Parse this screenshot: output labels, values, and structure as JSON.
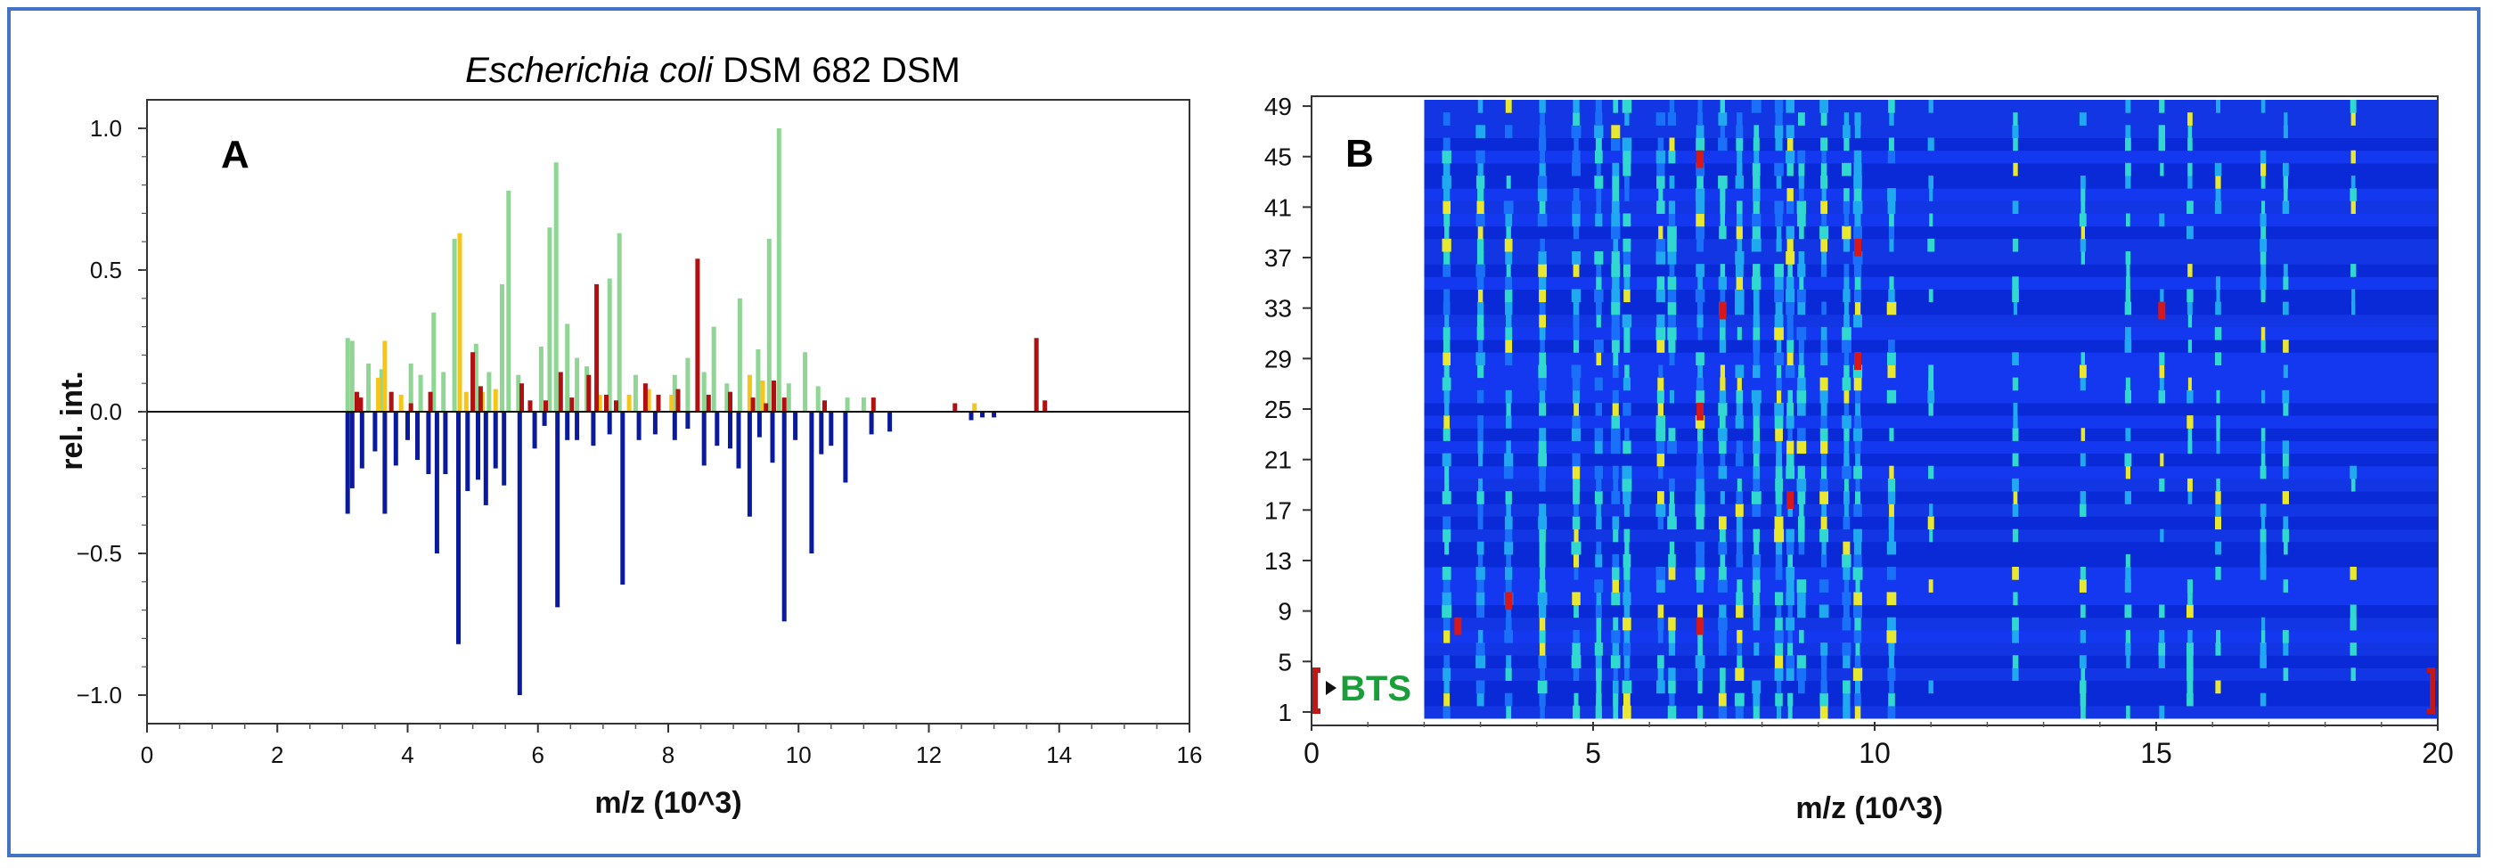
{
  "colors": {
    "frame": "#4472c4",
    "green": "#8fd694",
    "yellow": "#f5c518",
    "red": "#b01010",
    "blue": "#0a1a9c",
    "bts": "#1a9e3a"
  },
  "panelA": {
    "letter": "A",
    "title_italic": "Escherichia coli",
    "title_rest": " DSM 682 DSM"
  },
  "panelB": {
    "letter": "B",
    "bts_label": "BTS"
  },
  "chart_data": [
    {
      "type": "bar",
      "panel": "A",
      "title": "Escherichia coli DSM 682 DSM",
      "xlabel": "m/z (10^3)",
      "ylabel": "rel. int.",
      "xlim": [
        0,
        16
      ],
      "ylim": [
        -1.1,
        1.1
      ],
      "xticks": [
        0,
        2,
        4,
        6,
        8,
        10,
        12,
        14,
        16
      ],
      "yticks": [
        1.0,
        0.5,
        0.0,
        -0.5,
        -1.0
      ],
      "ytick_labels": [
        "1.0",
        "0.5",
        "0.0",
        "−0.5",
        "−1.0"
      ],
      "series": [
        {
          "color": "green",
          "x": [
            3.08,
            3.15,
            3.4,
            3.6,
            4.05,
            4.2,
            4.4,
            4.55,
            4.72,
            5.05,
            5.25,
            5.45,
            5.55,
            5.7,
            6.05,
            6.18,
            6.28,
            6.45,
            6.6,
            6.75,
            6.9,
            7.1,
            7.25,
            7.5,
            8.1,
            8.3,
            8.55,
            8.7,
            8.9,
            9.1,
            9.38,
            9.55,
            9.7,
            9.85,
            10.1,
            10.3,
            10.75,
            11.0
          ],
          "values": [
            0.26,
            0.25,
            0.17,
            0.15,
            0.17,
            0.13,
            0.35,
            0.14,
            0.61,
            0.24,
            0.14,
            0.45,
            0.78,
            0.13,
            0.23,
            0.65,
            0.88,
            0.31,
            0.19,
            0.16,
            0.07,
            0.47,
            0.63,
            0.13,
            0.13,
            0.19,
            0.14,
            0.3,
            0.1,
            0.4,
            0.22,
            0.61,
            1.0,
            0.1,
            0.21,
            0.09,
            0.05,
            0.05
          ]
        },
        {
          "color": "yellow",
          "x": [
            3.55,
            3.65,
            3.9,
            4.8,
            4.9,
            5.15,
            5.35,
            6.95,
            7.4,
            7.7,
            8.05,
            9.25,
            9.45,
            12.7
          ],
          "values": [
            0.12,
            0.25,
            0.06,
            0.63,
            0.07,
            0.07,
            0.08,
            0.06,
            0.06,
            0.08,
            0.06,
            0.13,
            0.11,
            0.03
          ]
        },
        {
          "color": "red",
          "x": [
            3.22,
            3.28,
            3.75,
            4.05,
            4.35,
            5.0,
            5.12,
            5.75,
            5.88,
            6.12,
            6.35,
            6.52,
            6.78,
            6.9,
            7.05,
            7.2,
            7.65,
            7.85,
            8.15,
            8.45,
            8.62,
            8.95,
            9.3,
            9.5,
            9.62,
            9.78,
            10.4,
            11.15,
            12.4,
            13.65,
            13.78
          ],
          "values": [
            0.07,
            0.05,
            0.07,
            0.03,
            0.07,
            0.21,
            0.09,
            0.1,
            0.04,
            0.04,
            0.14,
            0.05,
            0.13,
            0.45,
            0.06,
            0.04,
            0.1,
            0.06,
            0.08,
            0.54,
            0.06,
            0.07,
            0.05,
            0.03,
            0.11,
            0.05,
            0.04,
            0.05,
            0.03,
            0.26,
            0.04
          ]
        },
        {
          "color": "blue",
          "x": [
            3.08,
            3.15,
            3.3,
            3.5,
            3.65,
            3.82,
            4.0,
            4.15,
            4.32,
            4.45,
            4.58,
            4.78,
            4.92,
            5.08,
            5.2,
            5.35,
            5.48,
            5.72,
            5.95,
            6.1,
            6.3,
            6.45,
            6.6,
            6.85,
            7.1,
            7.3,
            7.55,
            7.8,
            8.1,
            8.3,
            8.55,
            8.75,
            8.95,
            9.08,
            9.25,
            9.4,
            9.6,
            9.78,
            9.95,
            10.2,
            10.35,
            10.5,
            10.72,
            11.12,
            11.4,
            12.65,
            12.82,
            13.0
          ],
          "values": [
            -0.36,
            -0.27,
            -0.2,
            -0.14,
            -0.36,
            -0.19,
            -0.1,
            -0.17,
            -0.22,
            -0.5,
            -0.22,
            -0.82,
            -0.28,
            -0.24,
            -0.33,
            -0.2,
            -0.26,
            -1.0,
            -0.13,
            -0.05,
            -0.69,
            -0.1,
            -0.1,
            -0.12,
            -0.08,
            -0.61,
            -0.1,
            -0.08,
            -0.1,
            -0.06,
            -0.19,
            -0.12,
            -0.13,
            -0.2,
            -0.37,
            -0.09,
            -0.18,
            -0.74,
            -0.1,
            -0.5,
            -0.15,
            -0.12,
            -0.25,
            -0.08,
            -0.07,
            -0.03,
            -0.02,
            -0.02
          ]
        }
      ]
    },
    {
      "type": "heatmap",
      "panel": "B",
      "xlabel": "m/z (10^3)",
      "xlim": [
        0,
        20
      ],
      "xticks": [
        0,
        5,
        10,
        15,
        20
      ],
      "ylim": [
        1,
        49
      ],
      "yticks": [
        1,
        5,
        9,
        13,
        17,
        21,
        25,
        29,
        33,
        37,
        41,
        45,
        49
      ],
      "data_x_range": [
        2,
        20
      ],
      "peaks_mz": [
        2.4,
        3.0,
        3.5,
        4.1,
        4.7,
        5.1,
        5.4,
        5.6,
        6.2,
        6.4,
        6.9,
        7.3,
        7.6,
        7.9,
        8.3,
        8.5,
        8.7,
        9.1,
        9.5,
        9.7,
        10.3,
        11.0,
        12.5,
        13.7,
        14.5,
        15.1,
        15.6,
        16.1,
        16.9,
        17.3,
        18.5
      ],
      "hot_spots": [
        {
          "mz": 6.9,
          "row": 25
        },
        {
          "mz": 6.9,
          "row": 45
        },
        {
          "mz": 6.9,
          "row": 8
        },
        {
          "mz": 7.3,
          "row": 33
        },
        {
          "mz": 9.7,
          "row": 38
        },
        {
          "mz": 9.7,
          "row": 29
        },
        {
          "mz": 15.1,
          "row": 33
        },
        {
          "mz": 8.5,
          "row": 18
        },
        {
          "mz": 3.5,
          "row": 10
        },
        {
          "mz": 2.6,
          "row": 8
        }
      ]
    }
  ]
}
